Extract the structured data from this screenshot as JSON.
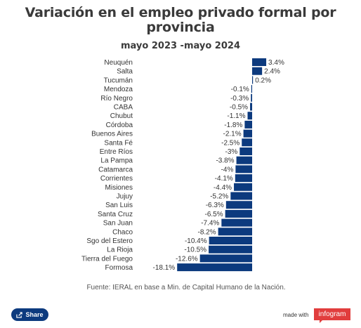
{
  "header": {
    "title_line1": "Variación en el empleo privado formal por",
    "title_line2": "provincia",
    "subtitle": "mayo 2023 -mayo 2024"
  },
  "footer": {
    "source": "Fuente: IERAL en base a Min. de Capital Humano de la Nación.",
    "share_label": "Share",
    "made_with": "made with",
    "brand": "infogram"
  },
  "colors": {
    "bar": "#0c3a7e",
    "brand": "#e13d3d"
  },
  "icons": {
    "share": "share-icon"
  },
  "chart_data": {
    "type": "bar",
    "orientation": "horizontal",
    "title": "Variación en el empleo privado formal por provincia",
    "subtitle": "mayo 2023 -mayo 2024",
    "categories": [
      "Neuquén",
      "Salta",
      "Tucumán",
      "Mendoza",
      "Río Negro",
      "CABA",
      "Chubut",
      "Córdoba",
      "Buenos Aires",
      "Santa Fé",
      "Entre Ríos",
      "La Pampa",
      "Catamarca",
      "Corrientes",
      "Misiones",
      "Jujuy",
      "San Luis",
      "Santa Cruz",
      "San Juan",
      "Chaco",
      "Sgo del Estero",
      "La Rioja",
      "Tierra del Fuego",
      "Formosa"
    ],
    "values": [
      3.4,
      2.4,
      0.2,
      -0.1,
      -0.3,
      -0.5,
      -1.1,
      -1.8,
      -2.1,
      -2.5,
      -3,
      -3.8,
      -4,
      -4.1,
      -4.4,
      -5.2,
      -6.3,
      -6.5,
      -7.4,
      -8.2,
      -10.4,
      -10.5,
      -12.6,
      -18.1
    ],
    "labels": [
      "3.4%",
      "2.4%",
      "0.2%",
      "-0.1%",
      "-0.3%",
      "-0.5%",
      "-1.1%",
      "-1.8%",
      "-2.1%",
      "-2.5%",
      "-3%",
      "-3.8%",
      "-4%",
      "-4.1%",
      "-4.4%",
      "-5.2%",
      "-6.3%",
      "-6.5%",
      "-7.4%",
      "-8.2%",
      "-10.4%",
      "-10.5%",
      "-12.6%",
      "-18.1%"
    ],
    "xlim": [
      -18.1,
      3.4
    ],
    "grid": false,
    "legend": "none"
  }
}
